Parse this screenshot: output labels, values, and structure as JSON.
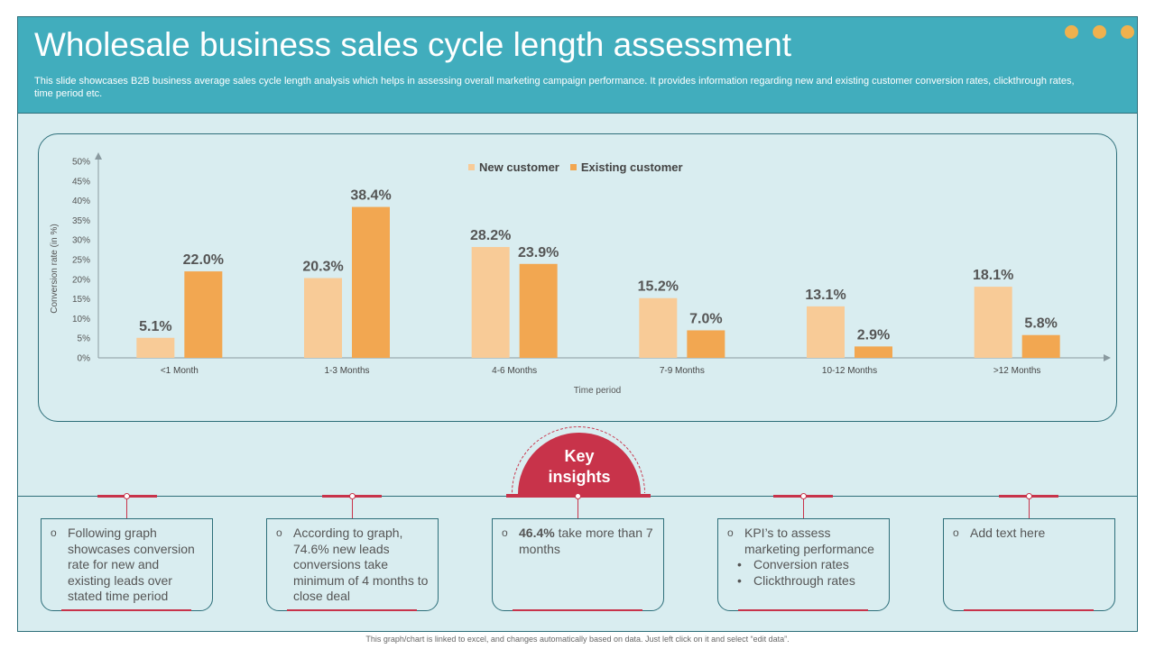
{
  "header": {
    "title": "Wholesale business sales cycle length assessment",
    "subtitle": "This slide showcases B2B business average sales cycle length analysis which helps in assessing overall marketing campaign performance. It provides information regarding new and existing customer conversion rates, clickthrough rates, time period etc."
  },
  "colors": {
    "header_bg": "#41adbd",
    "slide_bg": "#d9edf0",
    "accent_red": "#c8334a",
    "dot": "#f0b14e"
  },
  "chart_data": {
    "type": "bar",
    "categories": [
      "<1 Month",
      "1-3 Months",
      "4-6 Months",
      "7-9 Months",
      "10-12 Months",
      ">12 Months"
    ],
    "series": [
      {
        "name": "New customer",
        "color": "#f8cb97",
        "values": [
          5.1,
          20.3,
          28.2,
          15.2,
          13.1,
          18.1
        ]
      },
      {
        "name": "Existing customer",
        "color": "#f2a751",
        "values": [
          22.0,
          38.4,
          23.9,
          7.0,
          2.9,
          5.8
        ]
      }
    ],
    "data_labels": [
      [
        "5.1%",
        "20.3%",
        "28.2%",
        "15.2%",
        "13.1%",
        "18.1%"
      ],
      [
        "22.0%",
        "38.4%",
        "23.9%",
        "7.0%",
        "2.9%",
        "5.8%"
      ]
    ],
    "yticks": [
      0,
      5,
      10,
      15,
      20,
      25,
      30,
      35,
      40,
      45,
      50
    ],
    "ytick_labels": [
      "0%",
      "5%",
      "10%",
      "15%",
      "20%",
      "25%",
      "30%",
      "35%",
      "40%",
      "45%",
      "50%"
    ],
    "ylim": [
      0,
      50
    ],
    "xlabel": "Time period",
    "ylabel": "Conversion rate (in %)",
    "legend_position": "top-center"
  },
  "insights": {
    "badge_line1": "Key",
    "badge_line2": "insights",
    "card1": "Following graph showcases conversion rate for new and existing leads over stated time period",
    "card2": "According to graph, 74.6% new leads conversions take minimum of 4 months to close deal",
    "card3_bold": "46.4%",
    "card3_rest": " take more than 7 months",
    "card4_main": "KPI’s to assess marketing performance",
    "card4_sub1": "Conversion rates",
    "card4_sub2": "Clickthrough rates",
    "card5": "Add text here"
  },
  "footer": "This graph/chart is linked to excel, and changes automatically based on data. Just left click on it and select “edit data”."
}
